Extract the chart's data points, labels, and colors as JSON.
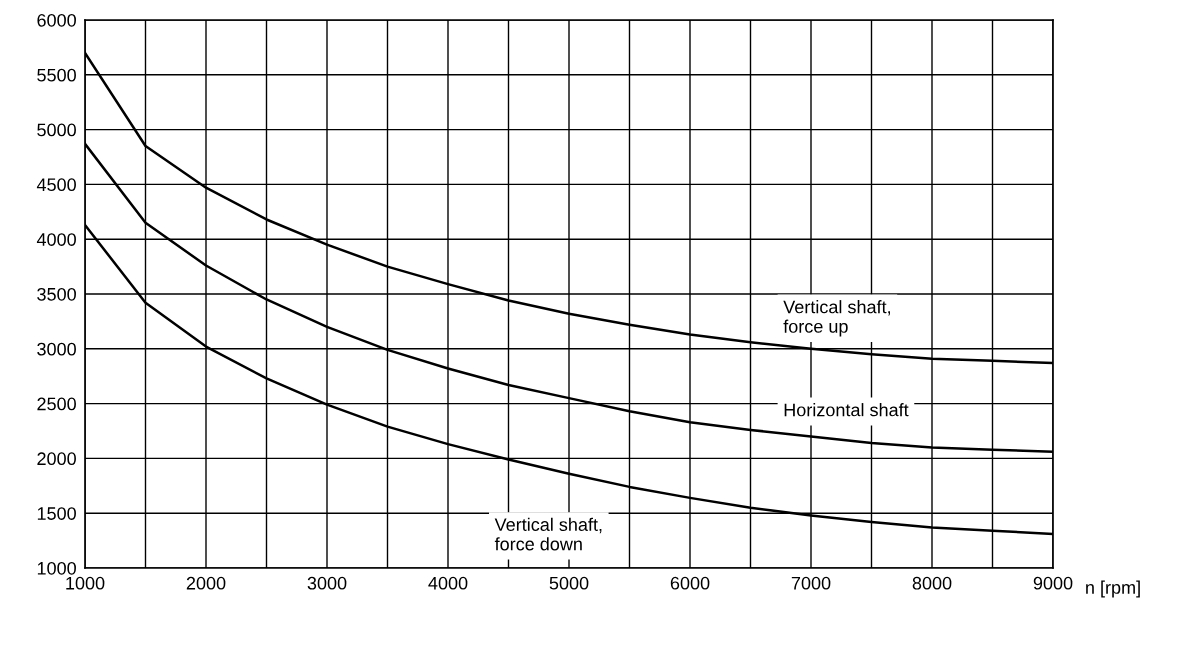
{
  "chart_data": {
    "type": "line",
    "xlabel": "n [rpm]",
    "x": [
      1000,
      1500,
      2000,
      2500,
      3000,
      3500,
      4000,
      4500,
      5000,
      5500,
      6000,
      6500,
      7000,
      7500,
      8000,
      8500,
      9000
    ],
    "series": [
      {
        "name": "Vertical shaft,\nforce up",
        "color": "#000000",
        "values": [
          5700,
          4850,
          4470,
          4180,
          3950,
          3750,
          3590,
          3440,
          3320,
          3220,
          3130,
          3060,
          3000,
          2950,
          2910,
          2890,
          2870
        ]
      },
      {
        "name": "Horizontal shaft",
        "color": "#000000",
        "values": [
          4870,
          4150,
          3760,
          3450,
          3200,
          2990,
          2820,
          2670,
          2550,
          2430,
          2330,
          2260,
          2200,
          2140,
          2100,
          2080,
          2060
        ]
      },
      {
        "name": "Vertical shaft,\nforce down",
        "color": "#000000",
        "values": [
          4130,
          3420,
          3020,
          2730,
          2490,
          2290,
          2130,
          1990,
          1860,
          1740,
          1640,
          1550,
          1480,
          1420,
          1370,
          1340,
          1310
        ]
      }
    ],
    "xlim": [
      1000,
      9000
    ],
    "ylim": [
      1000,
      6000
    ],
    "xticks": [
      1000,
      {
        "value": 1500,
        "label": null
      },
      2000,
      {
        "value": 2500,
        "label": null
      },
      3000,
      {
        "value": 3500,
        "label": null
      },
      4000,
      {
        "value": 4500,
        "label": null
      },
      5000,
      {
        "value": 5500,
        "label": null
      },
      6000,
      {
        "value": 6500,
        "label": null
      },
      7000,
      {
        "value": 7500,
        "label": null
      },
      8000,
      {
        "value": 8500,
        "label": null
      },
      9000
    ],
    "yticks": [
      1000,
      1500,
      2000,
      2500,
      3000,
      3500,
      4000,
      4500,
      5000,
      5500,
      6000
    ],
    "grid": true,
    "marker": "none",
    "line_style": "solid"
  }
}
